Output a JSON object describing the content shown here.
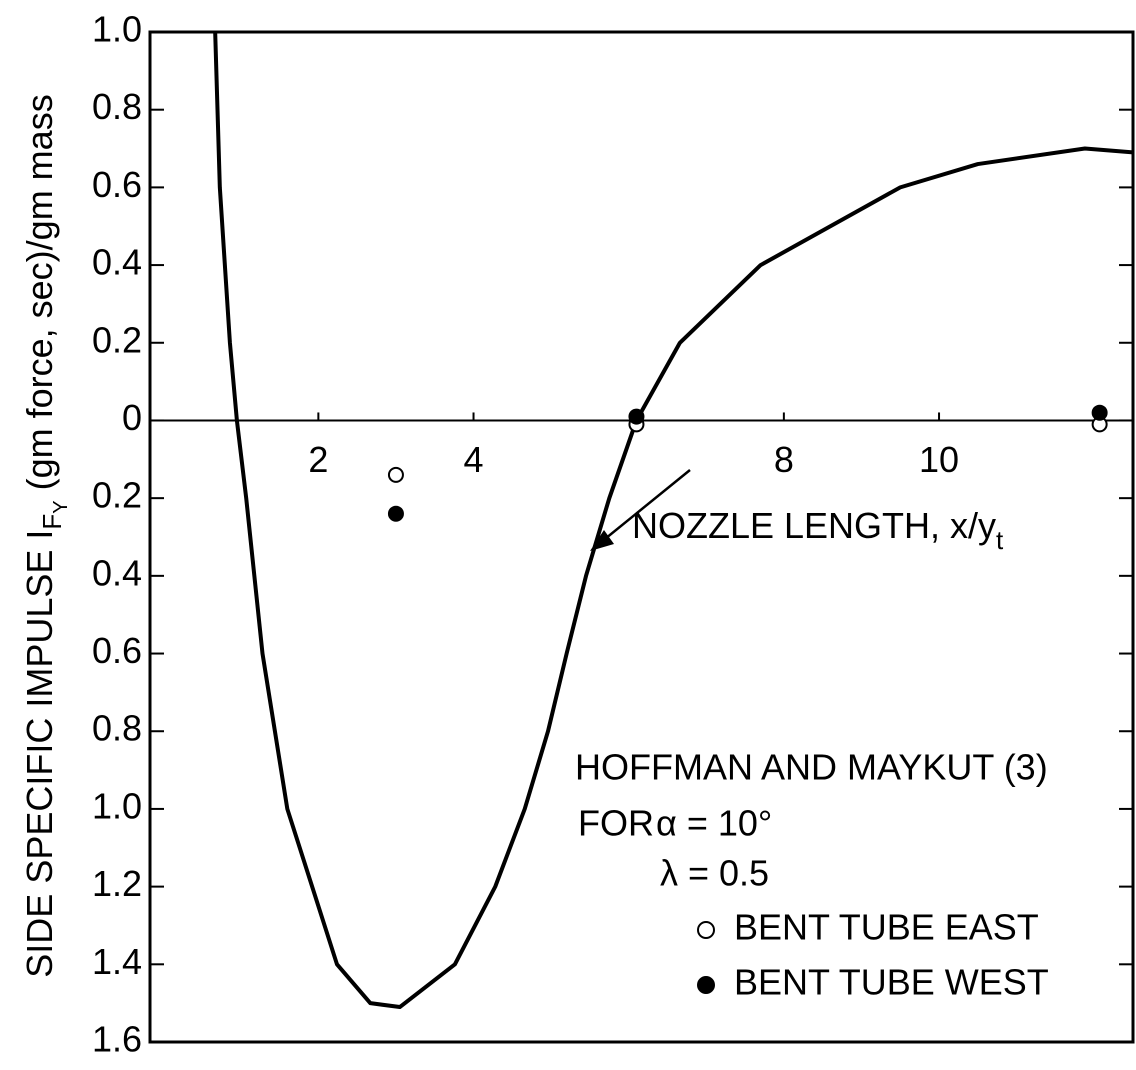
{
  "chart_data": {
    "type": "line",
    "ylabel": {
      "main": "SIDE SPECIFIC IMPULSE I",
      "sub": "F",
      "subsub": "Y",
      "rest": " (gm force, sec)/gm mass"
    },
    "xlabel": {
      "main": "NOZZLE LENGTH, x/y",
      "sub": "t"
    },
    "annotations": [
      "HOFFMAN AND MAYKUT (3)",
      "FOR",
      "α = 10°",
      "λ = 0.5"
    ],
    "xlim": [
      -0.17,
      12.5
    ],
    "ylim": [
      -1.6,
      1.0
    ],
    "xticks": [
      2,
      4,
      8,
      10
    ],
    "yticks": [
      {
        "value": 1.0,
        "label": "1.0"
      },
      0.8,
      0.6,
      0.4,
      0.2,
      0,
      {
        "value": -0.2,
        "label": "0.2"
      },
      {
        "value": -0.4,
        "label": "0.4"
      },
      {
        "value": -0.6,
        "label": "0.6"
      },
      {
        "value": -0.8,
        "label": "0.8"
      },
      {
        "value": -1.0,
        "label": "1.0"
      },
      {
        "value": -1.2,
        "label": "1.2"
      },
      {
        "value": -1.4,
        "label": "1.4"
      },
      {
        "value": -1.6,
        "label": "1.6"
      }
    ],
    "series": [
      {
        "name": "HOFFMAN AND MAYKUT (3)",
        "color": "#000000",
        "marker": "none",
        "x": [
          0.67,
          0.73,
          0.86,
          0.95,
          1.07,
          1.28,
          1.6,
          2.24,
          2.67,
          3.05,
          3.76,
          4.28,
          4.66,
          4.96,
          5.2,
          5.45,
          5.75,
          6.1,
          6.66,
          7.7,
          9.5,
          10.5,
          11.88,
          12.5
        ],
        "values": [
          1.0,
          0.6,
          0.2,
          0,
          -0.2,
          -0.6,
          -1.0,
          -1.4,
          -1.5,
          -1.51,
          -1.4,
          -1.2,
          -1.0,
          -0.8,
          -0.6,
          -0.4,
          -0.2,
          0,
          0.2,
          0.4,
          0.6,
          0.66,
          0.7,
          0.69
        ]
      },
      {
        "name": "BENT TUBE EAST",
        "color": "#000000",
        "marker": "open",
        "x": [
          3.0,
          6.1,
          12.07
        ],
        "values": [
          -0.14,
          -0.01,
          -0.01
        ]
      },
      {
        "name": "BENT TUBE WEST",
        "color": "#000000",
        "marker": "filled",
        "x": [
          3.0,
          6.1,
          12.07
        ],
        "values": [
          -0.24,
          0.01,
          0.02
        ]
      }
    ]
  }
}
